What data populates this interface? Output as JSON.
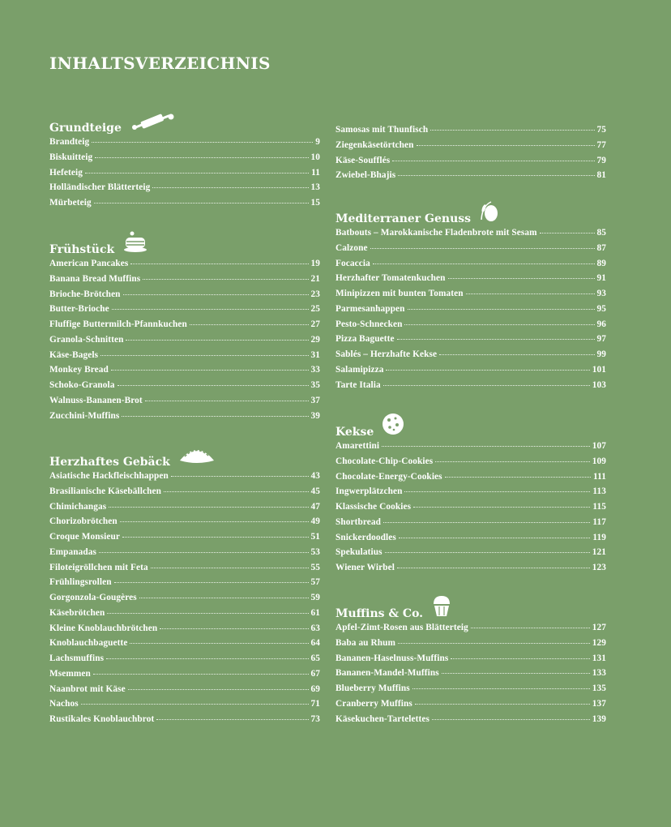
{
  "title": "INHALTSVERZEICHNIS",
  "left": [
    {
      "heading": "Grundteige",
      "icon": "rolling-pin-icon",
      "items": [
        {
          "name": "Brandteig",
          "page": "9"
        },
        {
          "name": "Biskuitteig",
          "page": "10"
        },
        {
          "name": "Hefeteig",
          "page": "11"
        },
        {
          "name": "Holländischer Blätterteig",
          "page": "13"
        },
        {
          "name": "Mürbeteig",
          "page": "15"
        }
      ]
    },
    {
      "heading": "Frühstück",
      "icon": "pancakes-icon",
      "items": [
        {
          "name": "American Pancakes",
          "page": "19"
        },
        {
          "name": "Banana Bread Muffins",
          "page": "21"
        },
        {
          "name": "Brioche-Brötchen",
          "page": "23"
        },
        {
          "name": "Butter-Brioche",
          "page": "25"
        },
        {
          "name": "Fluffige Buttermilch-Pfannkuchen",
          "page": "27"
        },
        {
          "name": "Granola-Schnitten",
          "page": "29"
        },
        {
          "name": "Käse-Bagels",
          "page": "31"
        },
        {
          "name": "Monkey Bread",
          "page": "33"
        },
        {
          "name": "Schoko-Granola",
          "page": "35"
        },
        {
          "name": "Walnuss-Bananen-Brot",
          "page": "37"
        },
        {
          "name": "Zucchini-Muffins",
          "page": "39"
        }
      ]
    },
    {
      "heading": "Herzhaftes Gebäck",
      "icon": "empanada-icon",
      "items": [
        {
          "name": "Asiatische Hackfleischhappen",
          "page": "43"
        },
        {
          "name": "Brasilianische Käsebällchen",
          "page": "45"
        },
        {
          "name": "Chimichangas",
          "page": "47"
        },
        {
          "name": "Chorizobrötchen",
          "page": "49"
        },
        {
          "name": "Croque Monsieur",
          "page": "51"
        },
        {
          "name": "Empanadas",
          "page": "53"
        },
        {
          "name": "Filoteigröllchen mit Feta",
          "page": "55"
        },
        {
          "name": "Frühlingsrollen",
          "page": "57"
        },
        {
          "name": "Gorgonzola-Gougères",
          "page": "59"
        },
        {
          "name": "Käsebrötchen",
          "page": "61"
        },
        {
          "name": "Kleine Knoblauchbrötchen",
          "page": "63"
        },
        {
          "name": "Knoblauchbaguette",
          "page": "64"
        },
        {
          "name": "Lachsmuffins",
          "page": "65"
        },
        {
          "name": "Msemmen",
          "page": "67"
        },
        {
          "name": "Naanbrot mit Käse",
          "page": "69"
        },
        {
          "name": "Nachos",
          "page": "71"
        },
        {
          "name": "Rustikales Knoblauchbrot",
          "page": "73"
        }
      ]
    }
  ],
  "right": [
    {
      "heading": "",
      "icon": "",
      "items": [
        {
          "name": "Samosas mit Thunfisch",
          "page": "75"
        },
        {
          "name": "Ziegenkäsetörtchen",
          "page": "77"
        },
        {
          "name": "Käse-Soufflés",
          "page": "79"
        },
        {
          "name": "Zwiebel-Bhajis",
          "page": "81"
        }
      ]
    },
    {
      "heading": "Mediterraner Genuss",
      "icon": "olive-icon",
      "items": [
        {
          "name": "Batbouts – Marokkanische Fladenbrote mit Sesam",
          "page": "85"
        },
        {
          "name": "Calzone",
          "page": "87"
        },
        {
          "name": "Focaccia",
          "page": "89"
        },
        {
          "name": "Herzhafter Tomatenkuchen",
          "page": "91"
        },
        {
          "name": "Minipizzen mit bunten Tomaten",
          "page": "93"
        },
        {
          "name": "Parmesanhappen",
          "page": "95"
        },
        {
          "name": "Pesto-Schnecken",
          "page": "96"
        },
        {
          "name": "Pizza Baguette",
          "page": "97"
        },
        {
          "name": "Sablés – Herzhafte Kekse",
          "page": "99"
        },
        {
          "name": "Salamipizza",
          "page": "101"
        },
        {
          "name": "Tarte Italia",
          "page": "103"
        }
      ]
    },
    {
      "heading": "Kekse",
      "icon": "cookie-icon",
      "items": [
        {
          "name": "Amarettini",
          "page": "107"
        },
        {
          "name": "Chocolate-Chip-Cookies",
          "page": "109"
        },
        {
          "name": "Chocolate-Energy-Cookies",
          "page": "111"
        },
        {
          "name": "Ingwerplätzchen",
          "page": "113"
        },
        {
          "name": "Klassische Cookies",
          "page": "115"
        },
        {
          "name": "Shortbread",
          "page": "117"
        },
        {
          "name": "Snickerdoodles",
          "page": "119"
        },
        {
          "name": "Spekulatius",
          "page": "121"
        },
        {
          "name": "Wiener Wirbel",
          "page": "123"
        }
      ]
    },
    {
      "heading": "Muffins & Co.",
      "icon": "muffin-icon",
      "items": [
        {
          "name": "Apfel-Zimt-Rosen aus Blätterteig",
          "page": "127"
        },
        {
          "name": "Baba au Rhum",
          "page": "129"
        },
        {
          "name": "Bananen-Haselnuss-Muffins",
          "page": "131"
        },
        {
          "name": "Bananen-Mandel-Muffins",
          "page": "133"
        },
        {
          "name": "Blueberry Muffins",
          "page": "135"
        },
        {
          "name": "Cranberry Muffins",
          "page": "137"
        },
        {
          "name": "Käsekuchen-Tartelettes",
          "page": "139"
        }
      ]
    }
  ]
}
